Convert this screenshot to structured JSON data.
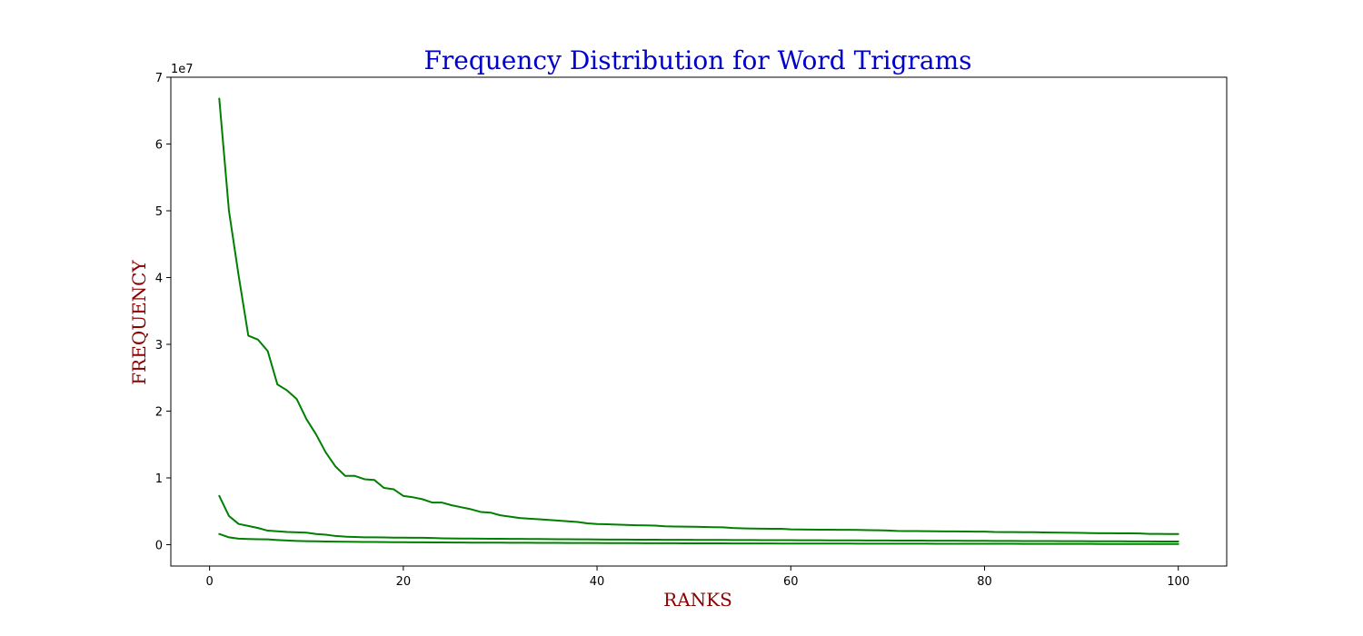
{
  "chart_data": {
    "type": "line",
    "title": "Frequency Distribution for Word Trigrams",
    "xlabel": "RANKS",
    "ylabel": "FREQUENCY",
    "y_offset_label": "1e7",
    "xlim": [
      -4,
      105
    ],
    "ylim": [
      -3200000,
      70000000
    ],
    "x_ticks": [
      0,
      20,
      40,
      60,
      80,
      100
    ],
    "y_ticks": [
      0,
      10000000,
      20000000,
      30000000,
      40000000,
      50000000,
      60000000,
      70000000
    ],
    "y_tick_labels": [
      "0",
      "1",
      "2",
      "3",
      "4",
      "5",
      "6",
      "7"
    ],
    "x": [
      1,
      2,
      3,
      4,
      5,
      6,
      7,
      8,
      9,
      10,
      11,
      12,
      13,
      14,
      15,
      16,
      17,
      18,
      19,
      20,
      21,
      22,
      23,
      24,
      25,
      26,
      27,
      28,
      29,
      30,
      31,
      32,
      33,
      34,
      35,
      36,
      37,
      38,
      39,
      40,
      41,
      42,
      43,
      44,
      45,
      46,
      47,
      48,
      49,
      50,
      51,
      52,
      53,
      54,
      55,
      56,
      57,
      58,
      59,
      60,
      61,
      62,
      63,
      64,
      65,
      66,
      67,
      68,
      69,
      70,
      71,
      72,
      73,
      74,
      75,
      76,
      77,
      78,
      79,
      80,
      81,
      82,
      83,
      84,
      85,
      86,
      87,
      88,
      89,
      90,
      91,
      92,
      93,
      94,
      95,
      96,
      97,
      98,
      99,
      100
    ],
    "grid": false,
    "legend": "none",
    "line_color": "#008000",
    "series": [
      {
        "values": [
          66800000,
          50000000,
          40300000,
          31300000,
          30700000,
          29000000,
          24000000,
          23100000,
          21800000,
          18800000,
          16500000,
          13800000,
          11700000,
          10300000,
          10300000,
          9800000,
          9700000,
          8500000,
          8300000,
          7300000,
          7100000,
          6800000,
          6300000,
          6300000,
          5900000,
          5600000,
          5300000,
          4900000,
          4800000,
          4400000,
          4200000,
          4000000,
          3900000,
          3800000,
          3700000,
          3600000,
          3500000,
          3400000,
          3200000,
          3100000,
          3050000,
          3000000,
          2950000,
          2900000,
          2880000,
          2850000,
          2750000,
          2720000,
          2700000,
          2680000,
          2650000,
          2620000,
          2600000,
          2500000,
          2450000,
          2420000,
          2400000,
          2380000,
          2370000,
          2300000,
          2280000,
          2260000,
          2250000,
          2240000,
          2230000,
          2220000,
          2200000,
          2180000,
          2150000,
          2120000,
          2050000,
          2040000,
          2030000,
          2020000,
          2000000,
          1990000,
          1980000,
          1970000,
          1960000,
          1950000,
          1900000,
          1890000,
          1880000,
          1870000,
          1860000,
          1840000,
          1820000,
          1800000,
          1780000,
          1770000,
          1730000,
          1720000,
          1710000,
          1700000,
          1690000,
          1680000,
          1620000,
          1610000,
          1600000,
          1590000
        ]
      },
      {
        "values": [
          7300000,
          4300000,
          3100000,
          2800000,
          2500000,
          2100000,
          2000000,
          1900000,
          1850000,
          1800000,
          1600000,
          1500000,
          1300000,
          1200000,
          1150000,
          1100000,
          1100000,
          1080000,
          1060000,
          1050000,
          1040000,
          1030000,
          1000000,
          950000,
          930000,
          920000,
          910000,
          900000,
          890000,
          880000,
          870000,
          860000,
          850000,
          840000,
          830000,
          820000,
          810000,
          800000,
          790000,
          780000,
          770000,
          760000,
          755000,
          750000,
          745000,
          740000,
          735000,
          730000,
          725000,
          720000,
          715000,
          710000,
          705000,
          700000,
          695000,
          690000,
          685000,
          680000,
          675000,
          670000,
          665000,
          660000,
          655000,
          650000,
          645000,
          640000,
          635000,
          630000,
          625000,
          620000,
          615000,
          610000,
          605000,
          600000,
          595000,
          590000,
          585000,
          580000,
          575000,
          570000,
          565000,
          560000,
          555000,
          550000,
          545000,
          540000,
          535000,
          530000,
          525000,
          520000,
          515000,
          510000,
          505000,
          500000,
          495000,
          490000,
          485000,
          480000,
          475000,
          470000
        ]
      },
      {
        "values": [
          1600000,
          1100000,
          900000,
          850000,
          820000,
          800000,
          700000,
          620000,
          560000,
          520000,
          500000,
          480000,
          460000,
          440000,
          420000,
          410000,
          400000,
          390000,
          380000,
          370000,
          360000,
          350000,
          340000,
          330000,
          320000,
          315000,
          310000,
          305000,
          300000,
          295000,
          290000,
          285000,
          280000,
          275000,
          270000,
          265000,
          260000,
          255000,
          250000,
          245000,
          240000,
          236000,
          232000,
          228000,
          224000,
          220000,
          216000,
          212000,
          208000,
          204000,
          200000,
          197000,
          194000,
          191000,
          188000,
          185000,
          182000,
          179000,
          176000,
          173000,
          170000,
          168000,
          166000,
          164000,
          162000,
          160000,
          158000,
          156000,
          154000,
          152000,
          150000,
          148000,
          146000,
          144000,
          142000,
          140000,
          138000,
          136000,
          134000,
          132000,
          130000,
          128000,
          126000,
          124000,
          122000,
          120000,
          118000,
          116000,
          114000,
          112000,
          110000,
          108000,
          106000,
          104000,
          102000,
          100000,
          98000,
          96000,
          94000,
          92000
        ]
      }
    ]
  }
}
